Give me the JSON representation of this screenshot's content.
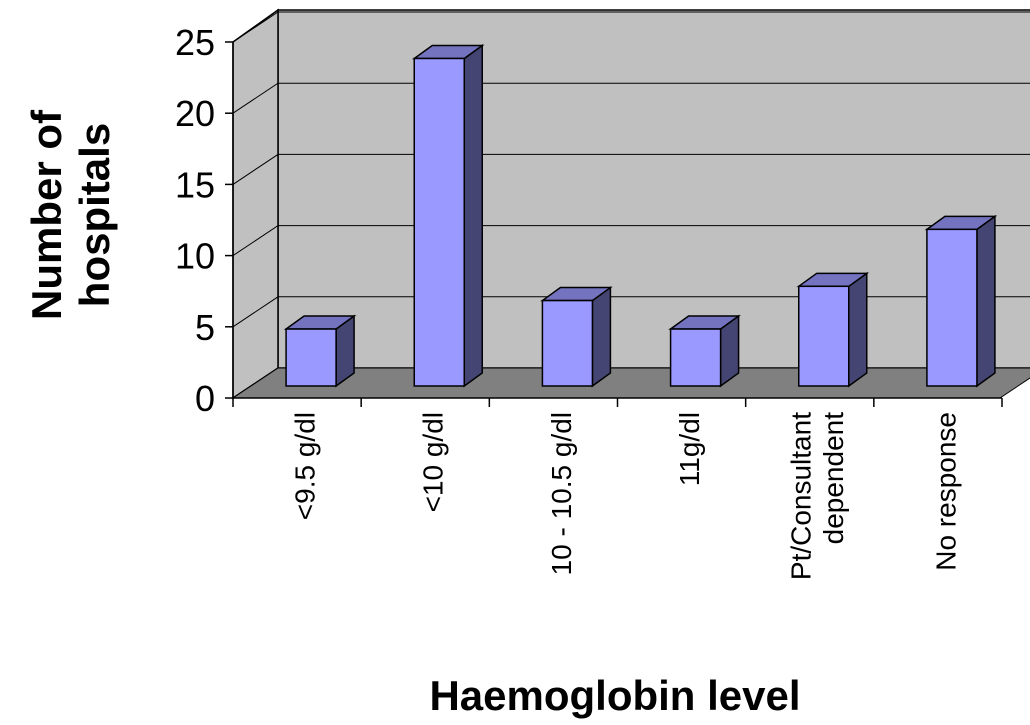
{
  "chart_data": {
    "type": "bar",
    "categories": [
      "<9.5 g/dl",
      "<10 g/dl",
      "10 - 10.5 g/dl",
      "11g/dl",
      "Pt/Consultant\ndependent",
      "No response"
    ],
    "values": [
      4,
      23,
      6,
      4,
      7,
      11
    ],
    "color": "#9999ff",
    "ylim": [
      0,
      25
    ],
    "yticks": [
      0,
      5,
      10,
      15,
      20,
      25
    ],
    "grid": true,
    "y_label": "Number of\nhospitals",
    "x_label": "Haemoglobin level"
  }
}
